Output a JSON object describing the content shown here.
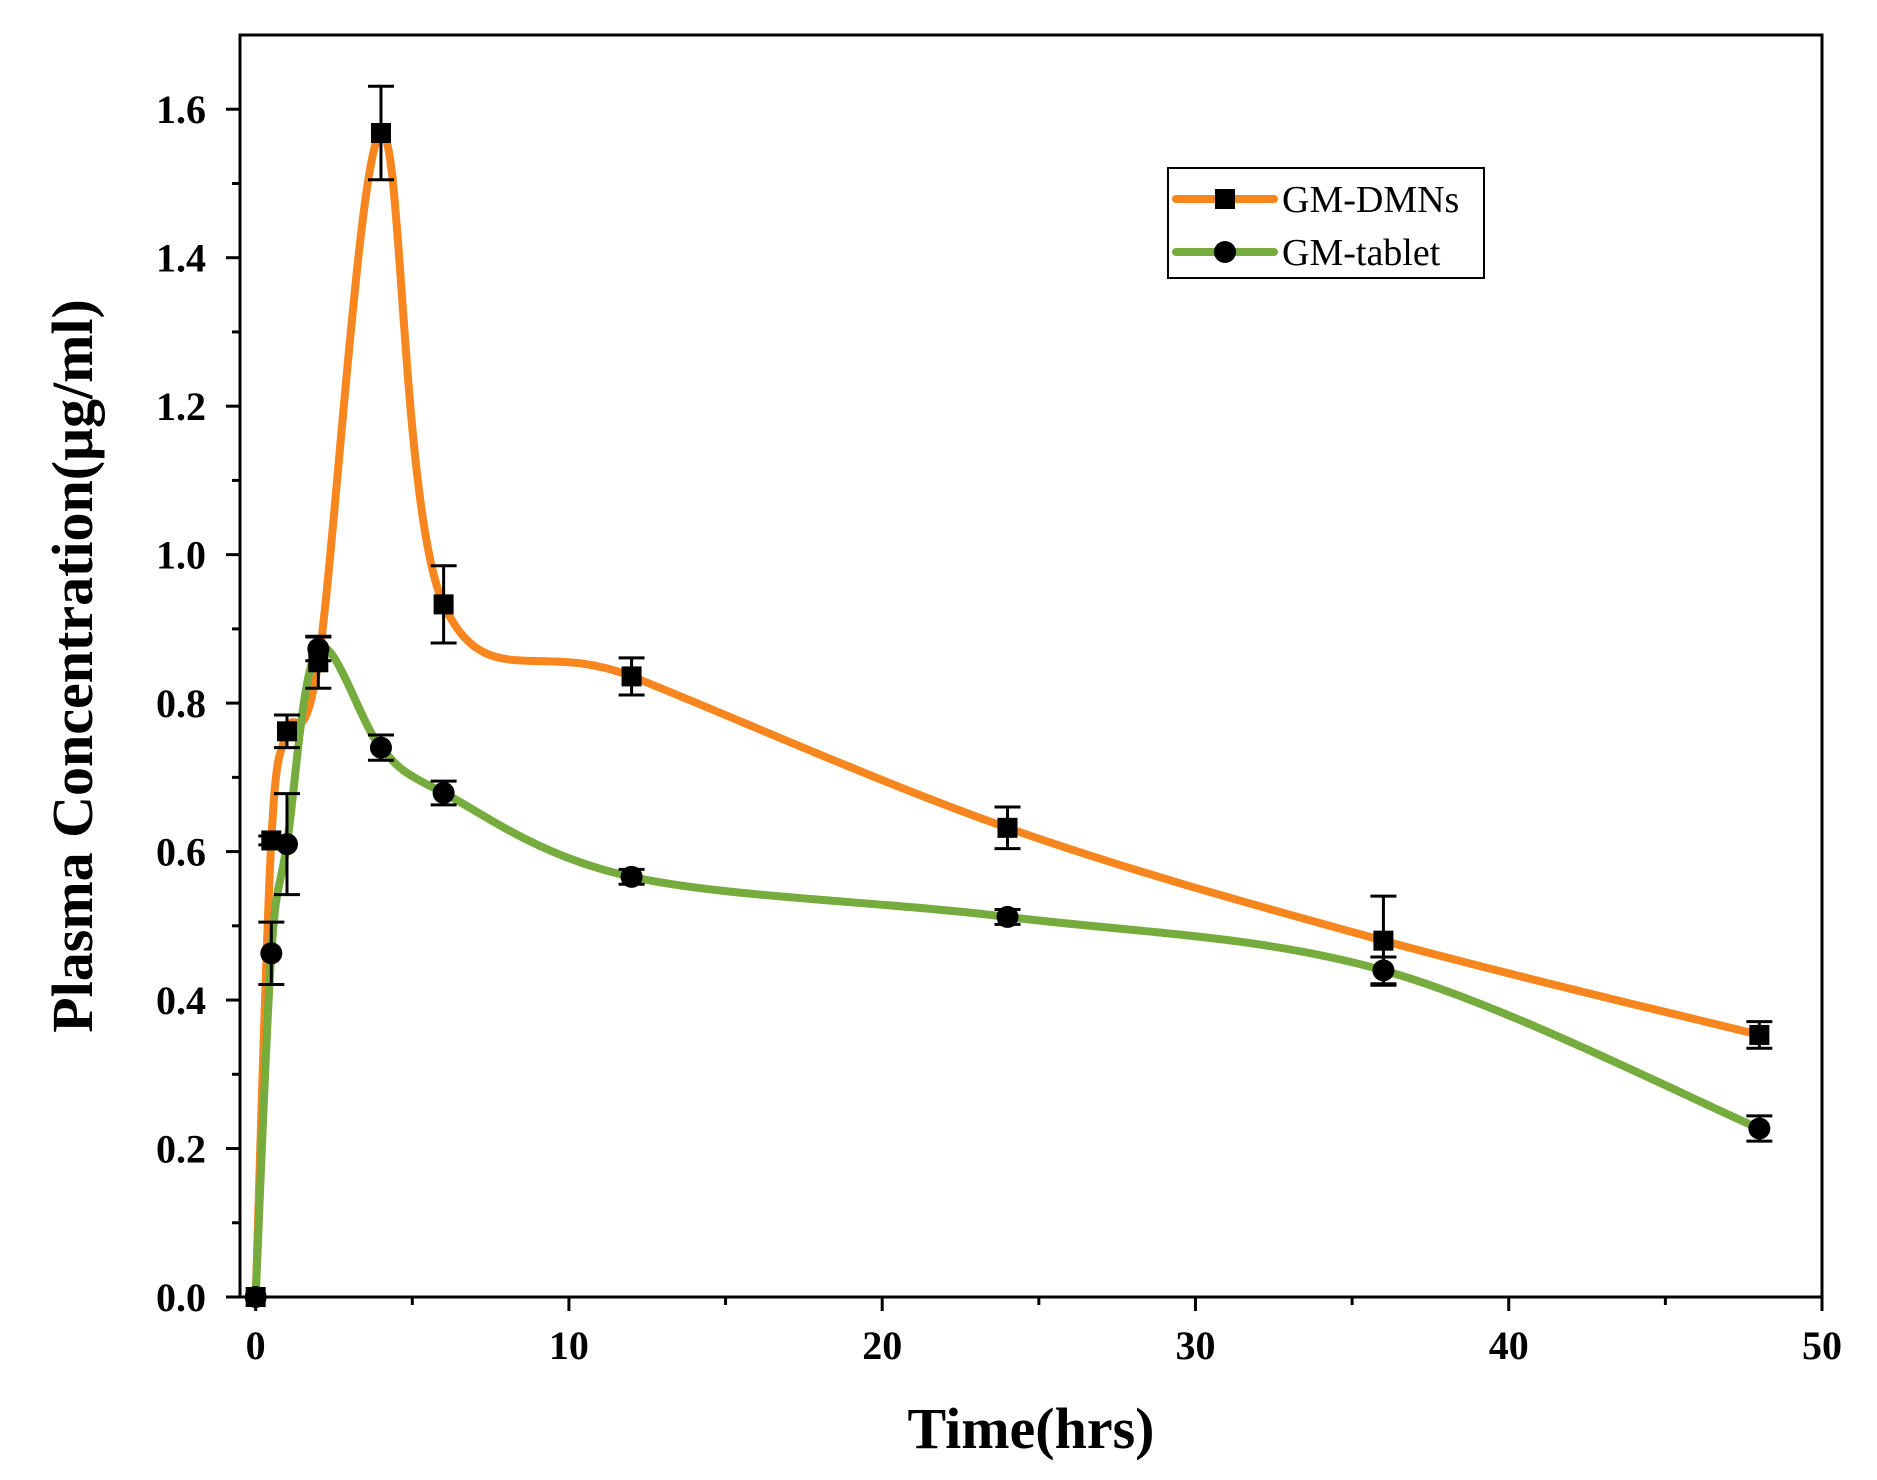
{
  "chart_data": {
    "type": "line",
    "title": "",
    "xlabel": "Time(hrs)",
    "ylabel": "Plasma Concentration(μg/ml)",
    "xlim": [
      -0.5,
      50
    ],
    "ylim": [
      0,
      1.7
    ],
    "x_ticks": [
      0,
      10,
      20,
      30,
      40,
      50
    ],
    "x_tick_labels": [
      "0",
      "10",
      "20",
      "30",
      "40",
      "50"
    ],
    "y_ticks": [
      0.0,
      0.2,
      0.4,
      0.6,
      0.8,
      1.0,
      1.2,
      1.4,
      1.6
    ],
    "y_tick_labels": [
      "0.0",
      "0.2",
      "0.4",
      "0.6",
      "0.8",
      "1.0",
      "1.2",
      "1.4",
      "1.6"
    ],
    "legend_position": "top-right",
    "series": [
      {
        "name": "GM-DMNs",
        "color": "#f7861e",
        "marker": "square",
        "x": [
          0,
          0.5,
          1,
          2,
          4,
          6,
          12,
          24,
          36,
          48
        ],
        "values": [
          0.0,
          0.615,
          0.762,
          0.855,
          1.568,
          0.933,
          0.836,
          0.632,
          0.48,
          0.353
        ],
        "errors": [
          0.0,
          0.006,
          0.022,
          0.035,
          0.063,
          0.052,
          0.025,
          0.028,
          0.06,
          0.018
        ]
      },
      {
        "name": "GM-tablet",
        "color": "#76ab3e",
        "marker": "circle",
        "x": [
          0,
          0.5,
          1,
          2,
          4,
          6,
          12,
          24,
          36,
          48
        ],
        "values": [
          0.0,
          0.463,
          0.61,
          0.873,
          0.74,
          0.679,
          0.566,
          0.512,
          0.44,
          0.227
        ],
        "errors": [
          0.0,
          0.042,
          0.068,
          0.016,
          0.017,
          0.016,
          0.01,
          0.01,
          0.018,
          0.017
        ]
      }
    ]
  }
}
